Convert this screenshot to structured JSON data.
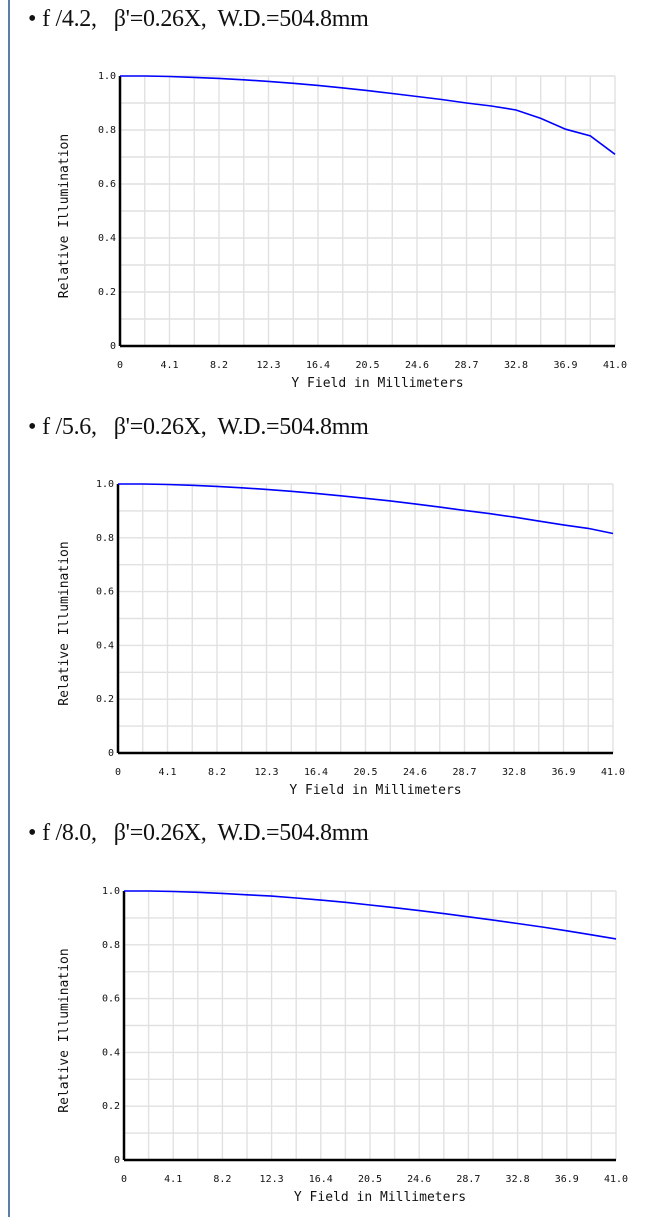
{
  "sections": [
    {
      "heading": {
        "bullet": "•",
        "text": "f /4.2,   β'=0.26X,  W.D.=504.8mm"
      },
      "chart_data": {
        "type": "line",
        "title": "",
        "xlabel": "Y Field in Millimeters",
        "ylabel": "Relative Illumination",
        "xlim": [
          0,
          41.0
        ],
        "ylim": [
          0,
          1.0
        ],
        "x_ticks": [
          "0",
          "4.1",
          "8.2",
          "12.3",
          "16.4",
          "20.5",
          "24.6",
          "28.7",
          "32.8",
          "36.9",
          "41.0"
        ],
        "y_ticks": [
          "0",
          "0.2",
          "0.4",
          "0.6",
          "0.8",
          "1.0"
        ],
        "grid": true,
        "series": [
          {
            "color": "#0000ff",
            "x": [
              0,
              2.05,
              4.1,
              6.15,
              8.2,
              10.25,
              12.3,
              14.35,
              16.4,
              18.45,
              20.5,
              22.55,
              24.6,
              26.65,
              28.7,
              30.75,
              32.8,
              34.85,
              36.9,
              38.95,
              41.0
            ],
            "y": [
              1.0,
              1.0,
              0.998,
              0.995,
              0.991,
              0.986,
              0.98,
              0.973,
              0.965,
              0.956,
              0.946,
              0.935,
              0.924,
              0.913,
              0.9,
              0.889,
              0.874,
              0.843,
              0.803,
              0.778,
              0.71
            ]
          }
        ]
      }
    },
    {
      "heading": {
        "bullet": "•",
        "text": "f /5.6,   β'=0.26X,  W.D.=504.8mm"
      },
      "chart_data": {
        "type": "line",
        "title": "",
        "xlabel": "Y Field in Millimeters",
        "ylabel": "Relative Illumination",
        "xlim": [
          0,
          41.0
        ],
        "ylim": [
          0,
          1.0
        ],
        "x_ticks": [
          "0",
          "4.1",
          "8.2",
          "12.3",
          "16.4",
          "20.5",
          "24.6",
          "28.7",
          "32.8",
          "36.9",
          "41.0"
        ],
        "y_ticks": [
          "0",
          "0.2",
          "0.4",
          "0.6",
          "0.8",
          "1.0"
        ],
        "grid": true,
        "series": [
          {
            "color": "#0000ff",
            "x": [
              0,
              2.05,
              4.1,
              6.15,
              8.2,
              10.25,
              12.3,
              14.35,
              16.4,
              18.45,
              20.5,
              22.55,
              24.6,
              26.65,
              28.7,
              30.75,
              32.8,
              34.85,
              36.9,
              38.95,
              41.0
            ],
            "y": [
              1.0,
              1.0,
              0.998,
              0.995,
              0.991,
              0.986,
              0.98,
              0.973,
              0.965,
              0.956,
              0.947,
              0.937,
              0.926,
              0.914,
              0.902,
              0.89,
              0.877,
              0.862,
              0.848,
              0.835,
              0.816
            ]
          }
        ]
      }
    },
    {
      "heading": {
        "bullet": "•",
        "text": "f /8.0,   β'=0.26X,  W.D.=504.8mm"
      },
      "chart_data": {
        "type": "line",
        "title": "",
        "xlabel": "Y Field in Millimeters",
        "ylabel": "Relative Illumination",
        "xlim": [
          0,
          41.0
        ],
        "ylim": [
          0,
          1.0
        ],
        "x_ticks": [
          "0",
          "4.1",
          "8.2",
          "12.3",
          "16.4",
          "20.5",
          "24.6",
          "28.7",
          "32.8",
          "36.9",
          "41.0"
        ],
        "y_ticks": [
          "0",
          "0.2",
          "0.4",
          "0.6",
          "0.8",
          "1.0"
        ],
        "grid": true,
        "series": [
          {
            "color": "#0000ff",
            "x": [
              0,
              2.05,
              4.1,
              6.15,
              8.2,
              10.25,
              12.3,
              14.35,
              16.4,
              18.45,
              20.5,
              22.55,
              24.6,
              26.65,
              28.7,
              30.75,
              32.8,
              34.85,
              36.9,
              38.95,
              41.0
            ],
            "y": [
              1.0,
              1.0,
              0.998,
              0.995,
              0.991,
              0.986,
              0.981,
              0.974,
              0.966,
              0.958,
              0.948,
              0.938,
              0.927,
              0.916,
              0.904,
              0.892,
              0.879,
              0.866,
              0.852,
              0.837,
              0.822
            ]
          }
        ]
      }
    }
  ]
}
